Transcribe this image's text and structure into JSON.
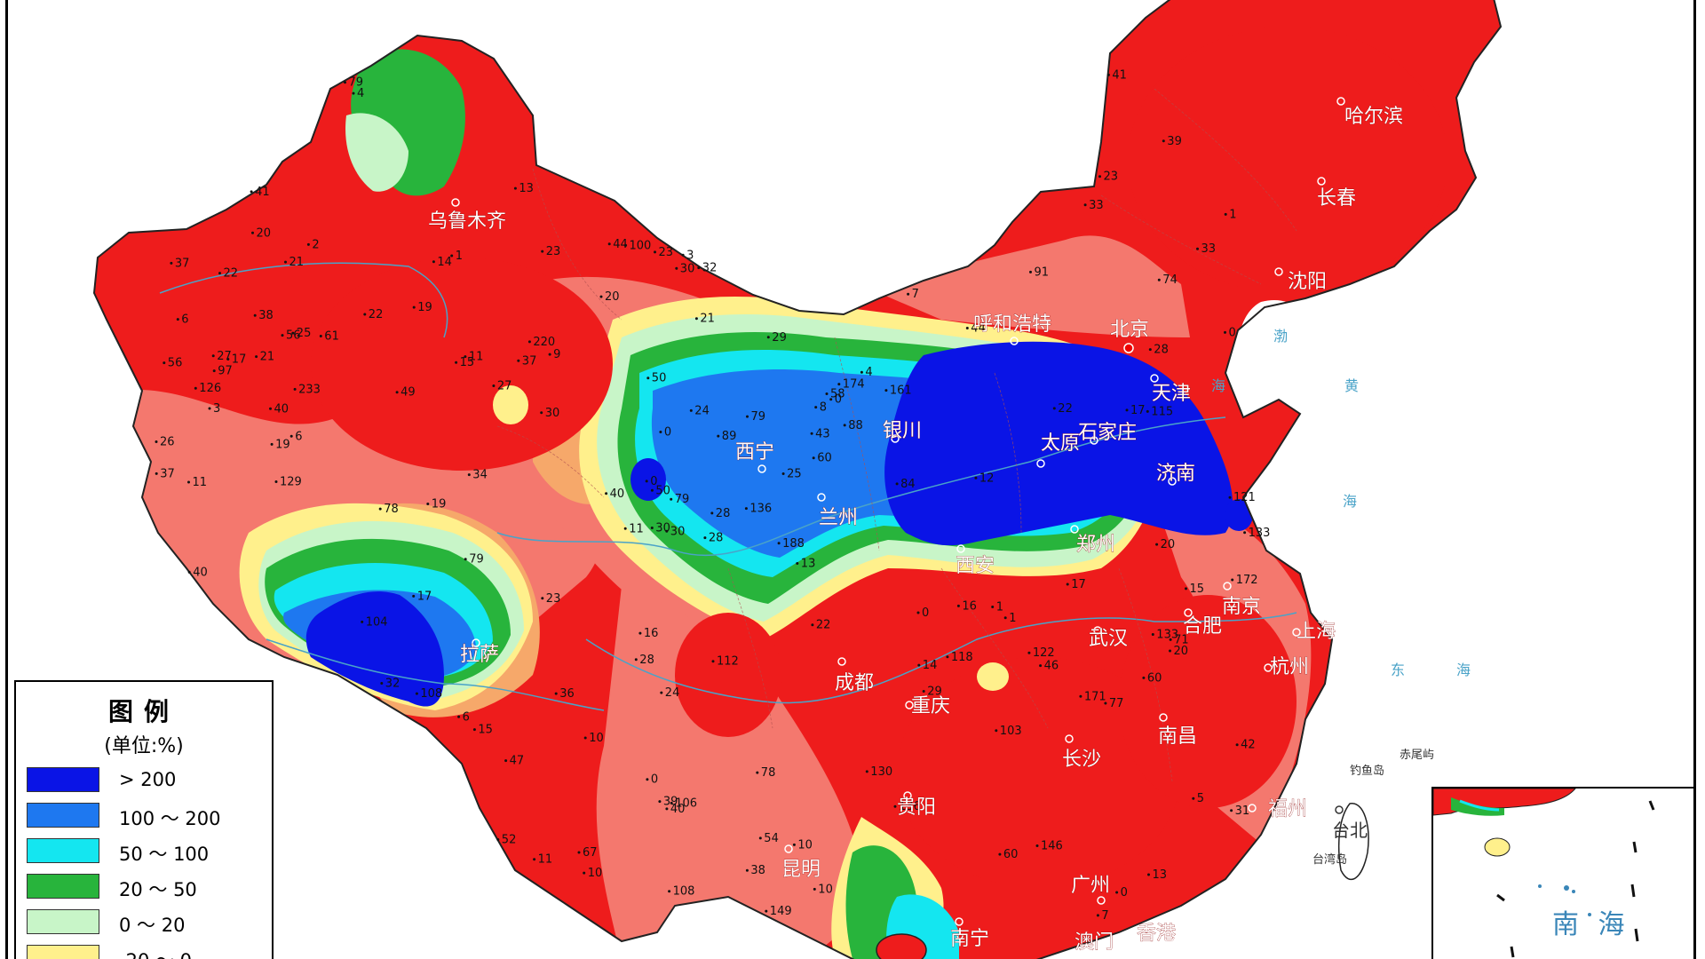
{
  "legend": {
    "title": "图例",
    "unit": "(单位:%)",
    "items": [
      {
        "label": "> 200",
        "color": "#0a14e6"
      },
      {
        "label": "100 ～ 200",
        "color": "#1e78f0"
      },
      {
        "label": "50 ～ 100",
        "color": "#14e6f0"
      },
      {
        "label": "20 ～ 50",
        "color": "#28b43c"
      },
      {
        "label": "0 ～ 20",
        "color": "#c8f5c8"
      },
      {
        "label": "-20 ～ 0",
        "color": "#fff08c"
      }
    ]
  },
  "colors": {
    "red": "#ee1c1c",
    "salmon": "#f4786e",
    "orange": "#f6a86a",
    "yellow": "#fff08c",
    "lightgreen": "#c8f5c8",
    "green": "#28b43c",
    "cyan": "#14e6f0",
    "lightblue": "#1e78f0",
    "blue": "#0a14e6"
  },
  "cities": [
    {
      "name": "乌鲁木齐"
    },
    {
      "name": "哈尔滨"
    },
    {
      "name": "长春"
    },
    {
      "name": "沈阳"
    },
    {
      "name": "呼和浩特"
    },
    {
      "name": "北京"
    },
    {
      "name": "天津"
    },
    {
      "name": "石家庄"
    },
    {
      "name": "太原"
    },
    {
      "name": "银川"
    },
    {
      "name": "西宁"
    },
    {
      "name": "兰州"
    },
    {
      "name": "济南"
    },
    {
      "name": "郑州"
    },
    {
      "name": "西安"
    },
    {
      "name": "南京"
    },
    {
      "name": "合肥"
    },
    {
      "name": "上海"
    },
    {
      "name": "武汉"
    },
    {
      "name": "杭州"
    },
    {
      "name": "拉萨"
    },
    {
      "name": "成都"
    },
    {
      "name": "重庆"
    },
    {
      "name": "长沙"
    },
    {
      "name": "南昌"
    },
    {
      "name": "贵阳"
    },
    {
      "name": "福州"
    },
    {
      "name": "台北"
    },
    {
      "name": "昆明"
    },
    {
      "name": "广州"
    },
    {
      "name": "南宁"
    },
    {
      "name": "澳门"
    },
    {
      "name": "香港"
    }
  ],
  "sea_labels": [
    "渤",
    "海",
    "黄",
    "海",
    "东",
    "海"
  ],
  "islands": [
    "钓鱼岛",
    "赤尾屿",
    "台湾岛"
  ],
  "inset_label": "南 海",
  "station_values": [
    "28",
    "21",
    "50",
    "8",
    "15",
    "25",
    "4",
    "6",
    "1",
    "11",
    "7",
    "23",
    "29",
    "9",
    "3",
    "0",
    "1",
    "2",
    "3",
    "0",
    "0",
    "0",
    "0",
    "0",
    "1",
    "6",
    "0",
    "5",
    "1",
    "37",
    "49",
    "29",
    "56",
    "43",
    "40",
    "60",
    "74",
    "118",
    "136",
    "79",
    "78",
    "23",
    "34",
    "17",
    "19",
    "24",
    "24",
    "11",
    "16",
    "15",
    "22",
    "40",
    "50",
    "54",
    "79",
    "84",
    "71",
    "108",
    "115",
    "112",
    "146",
    "149",
    "130",
    "133",
    "161",
    "103",
    "89",
    "60",
    "97",
    "78",
    "121",
    "126",
    "104",
    "108",
    "52",
    "58",
    "33",
    "30",
    "20",
    "41",
    "32",
    "40",
    "30",
    "39",
    "44",
    "41",
    "23",
    "12",
    "17",
    "13",
    "10",
    "22",
    "20",
    "10",
    "11",
    "13",
    "15",
    "46",
    "79",
    "172",
    "220",
    "188",
    "233",
    "171",
    "136",
    "174",
    "67",
    "60",
    "39",
    "28",
    "14",
    "27",
    "17",
    "21",
    "19",
    "22",
    "37",
    "38",
    "16",
    "31",
    "7",
    "77",
    "10",
    "6",
    "4",
    "14",
    "37",
    "25",
    "22",
    "28",
    "38",
    "21",
    "61",
    "56",
    "40",
    "47",
    "79",
    "133",
    "36",
    "30",
    "91",
    "88",
    "106",
    "129",
    "100",
    "122",
    "32",
    "19",
    "20",
    "26",
    "44",
    "11",
    "30",
    "28",
    "42",
    "33",
    "27",
    "20",
    "17",
    "10",
    "13",
    "23"
  ]
}
